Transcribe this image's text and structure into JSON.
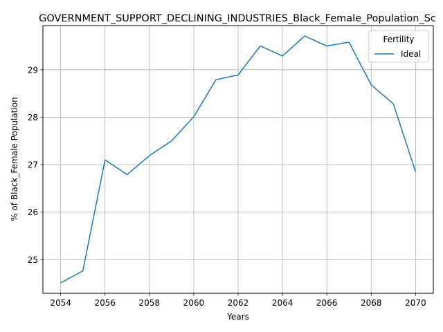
{
  "chart_data": {
    "type": "line",
    "title": "GOVERNMENT_SUPPORT_DECLINING_INDUSTRIES_Black_Female_Population_Sc",
    "xlabel": "Years",
    "ylabel": "% of Black_Female Population",
    "x": [
      2054,
      2055,
      2056,
      2057,
      2058,
      2059,
      2060,
      2061,
      2062,
      2063,
      2064,
      2065,
      2066,
      2067,
      2068,
      2069,
      2070
    ],
    "series": [
      {
        "name": "Ideal",
        "color": "#1f77b4",
        "values": [
          24.51,
          24.76,
          27.1,
          26.79,
          27.19,
          27.5,
          28.01,
          28.79,
          28.89,
          29.5,
          29.29,
          29.71,
          29.5,
          29.58,
          28.68,
          28.28,
          26.85
        ]
      }
    ],
    "xlim": [
      2053.2,
      2070.8
    ],
    "ylim": [
      24.29,
      29.93
    ],
    "xticks": [
      2054,
      2056,
      2058,
      2060,
      2062,
      2064,
      2066,
      2068,
      2070
    ],
    "yticks": [
      25,
      26,
      27,
      28,
      29
    ],
    "grid": true,
    "legend": {
      "title": "Fertility",
      "position": "top-right"
    }
  }
}
